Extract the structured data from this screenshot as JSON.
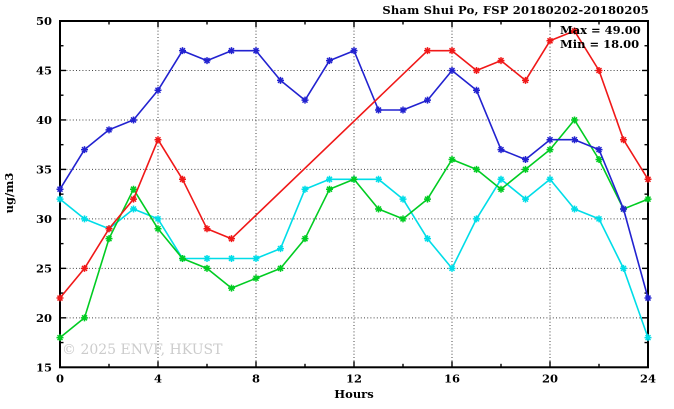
{
  "figure": {
    "title": "Sham Shui Po, FSP 20180202-20180205",
    "xlabel": "Hours",
    "ylabel": "ug/m3",
    "watermark": "© 2025 ENVF, HKUST",
    "annotation": {
      "max_label": "Max = 49.00",
      "min_label": "Min = 18.00"
    }
  },
  "chart_data": {
    "type": "line",
    "title": "Sham Shui Po, FSP 20180202-20180205",
    "xlabel": "Hours",
    "ylabel": "ug/m3",
    "xlim": [
      0,
      24
    ],
    "ylim": [
      15,
      50
    ],
    "xticks": [
      0,
      4,
      8,
      12,
      16,
      20,
      24
    ],
    "yticks": [
      15,
      20,
      25,
      30,
      35,
      40,
      45,
      50
    ],
    "x_minor_ticks": [
      2,
      6,
      10,
      14,
      18,
      22
    ],
    "y_minor_ticks": [
      17.5,
      22.5,
      27.5,
      32.5,
      37.5,
      42.5,
      47.5
    ],
    "grid_x": [
      4,
      8,
      12,
      16,
      20
    ],
    "grid_y": [
      20,
      25,
      30,
      35,
      40,
      45
    ],
    "grid_style": "dotted",
    "legend_position": "none",
    "stat_max": 49.0,
    "stat_min": 18.0,
    "x": [
      0,
      1,
      2,
      3,
      4,
      5,
      6,
      7,
      8,
      9,
      10,
      11,
      12,
      13,
      14,
      15,
      16,
      17,
      18,
      19,
      20,
      21,
      22,
      23,
      24
    ],
    "series": [
      {
        "name": "cyan-line",
        "color": "#00dde8",
        "values": [
          32,
          30,
          29,
          31,
          30,
          26,
          26,
          26,
          26,
          27,
          33,
          34,
          34,
          34,
          32,
          28,
          25,
          30,
          34,
          32,
          34,
          31,
          30,
          25,
          18
        ]
      },
      {
        "name": "green-line",
        "color": "#00cc22",
        "values": [
          18,
          20,
          28,
          33,
          29,
          26,
          25,
          23,
          24,
          25,
          28,
          33,
          34,
          31,
          30,
          32,
          36,
          35,
          33,
          35,
          37,
          40,
          36,
          31,
          32
        ]
      },
      {
        "name": "blue-line",
        "color": "#2222d0",
        "values": [
          33,
          37,
          39,
          40,
          43,
          47,
          46,
          47,
          47,
          44,
          42,
          46,
          47,
          41,
          41,
          42,
          45,
          43,
          37,
          36,
          38,
          38,
          37,
          31,
          22
        ]
      },
      {
        "name": "red-line",
        "color": "#f01818",
        "values": [
          22,
          25,
          29,
          32,
          38,
          34,
          29,
          28,
          null,
          null,
          null,
          null,
          null,
          null,
          null,
          47,
          47,
          45,
          46,
          44,
          48,
          49,
          45,
          38,
          34
        ]
      }
    ]
  },
  "colors": {
    "background": "#ffffff",
    "axis": "#000000",
    "grid": "#444444",
    "watermark": "#cccccc",
    "text": "#000000"
  }
}
